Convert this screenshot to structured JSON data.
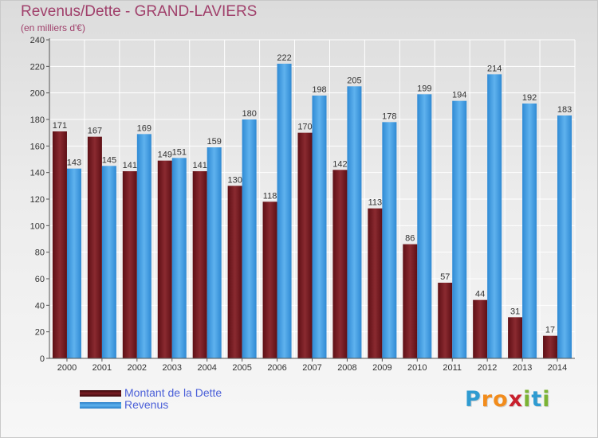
{
  "header": {
    "title": "Revenus/Dette - GRAND-LAVIERS",
    "subtitle": "(en milliers d'€)"
  },
  "colors": {
    "dette": "#7a1f25",
    "revenus": "#4ea5e6",
    "title": "#a0406b",
    "legend_text": "#4a5fd8"
  },
  "legend": {
    "items": [
      {
        "label": "Montant de la Dette",
        "color": "#5a0f14"
      },
      {
        "label": "Revenus",
        "color": "#3a8fd6"
      }
    ]
  },
  "logo": {
    "letters": [
      "P",
      "r",
      "o",
      "x",
      "i",
      "t",
      "i"
    ],
    "colors": [
      "#2f9bd1",
      "#f28c1c",
      "#f28c1c",
      "#c8202d",
      "#7bb334",
      "#2f9bd1",
      "#7bb334"
    ]
  },
  "chart_data": {
    "type": "bar",
    "title": "Revenus/Dette - GRAND-LAVIERS",
    "subtitle": "(en milliers d'€)",
    "categories": [
      "2000",
      "2001",
      "2002",
      "2003",
      "2004",
      "2005",
      "2006",
      "2007",
      "2008",
      "2009",
      "2010",
      "2011",
      "2012",
      "2013",
      "2014"
    ],
    "series": [
      {
        "name": "Montant de la Dette",
        "values": [
          171,
          167,
          141,
          149,
          141,
          130,
          118,
          170,
          142,
          113,
          86,
          57,
          44,
          31,
          17
        ]
      },
      {
        "name": "Revenus",
        "values": [
          143,
          145,
          169,
          151,
          159,
          180,
          222,
          198,
          205,
          178,
          199,
          194,
          214,
          192,
          183
        ]
      }
    ],
    "ylim": [
      0,
      240
    ],
    "yticks": [
      0,
      20,
      40,
      60,
      80,
      100,
      120,
      140,
      160,
      180,
      200,
      220,
      240
    ],
    "grid": true,
    "legend_position": "bottom-left"
  }
}
